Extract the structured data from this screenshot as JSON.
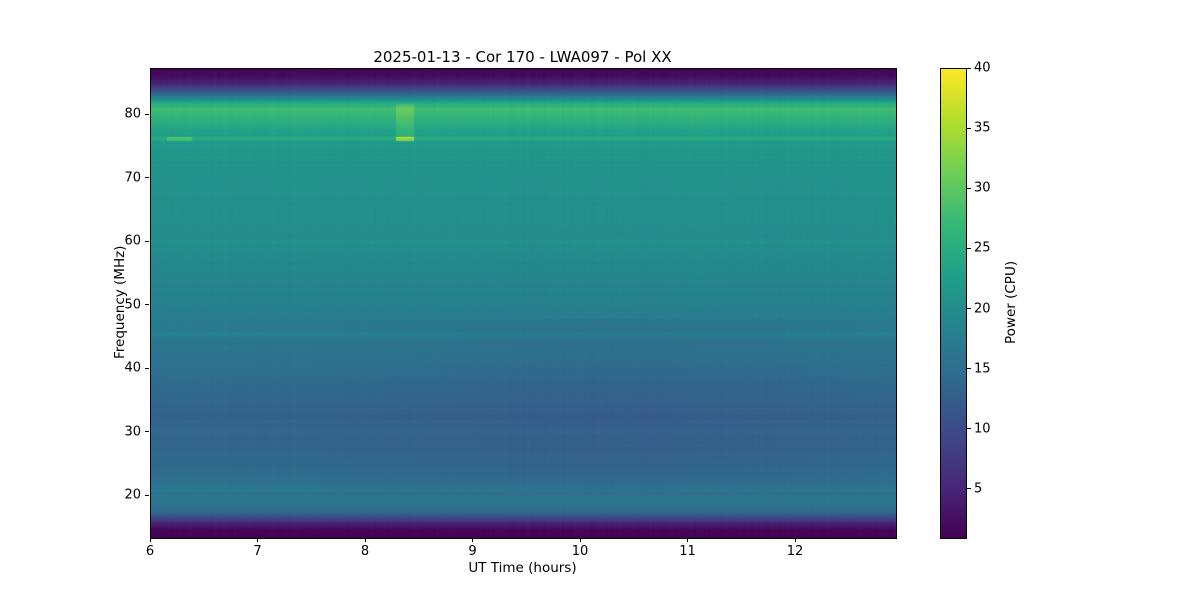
{
  "chart_data": {
    "type": "heatmap",
    "title": "2025-01-13 - Cor 170 - LWA097 - Pol XX",
    "xlabel": "UT Time (hours)",
    "ylabel": "Frequency (MHz)",
    "zlabel": "Power (CPU)",
    "colormap": "viridis",
    "x_range": [
      6.0,
      12.93
    ],
    "y_range": [
      13.4,
      87.3
    ],
    "clim": [
      1,
      40
    ],
    "x_ticks": [
      6,
      7,
      8,
      9,
      10,
      11,
      12
    ],
    "y_ticks": [
      20,
      30,
      40,
      50,
      60,
      70,
      80
    ],
    "colorbar_ticks": [
      5,
      10,
      15,
      20,
      25,
      30,
      35,
      40
    ],
    "spectrum_profile": [
      [
        13.4,
        1.0
      ],
      [
        14.5,
        1.5
      ],
      [
        15.5,
        4.0
      ],
      [
        16.5,
        9.0
      ],
      [
        17.5,
        14.0
      ],
      [
        19.0,
        16.5
      ],
      [
        21.0,
        16.0
      ],
      [
        24.0,
        14.5
      ],
      [
        28.0,
        13.8
      ],
      [
        33.0,
        13.4
      ],
      [
        38.0,
        14.5
      ],
      [
        43.0,
        16.3
      ],
      [
        47.0,
        17.3
      ],
      [
        52.0,
        18.4
      ],
      [
        57.0,
        19.4
      ],
      [
        63.0,
        20.4
      ],
      [
        70.0,
        21.0
      ],
      [
        74.0,
        21.5
      ],
      [
        76.0,
        22.0
      ],
      [
        78.0,
        24.0
      ],
      [
        80.0,
        26.8
      ],
      [
        81.0,
        28.0
      ],
      [
        82.0,
        24.0
      ],
      [
        83.0,
        17.0
      ],
      [
        84.0,
        10.0
      ],
      [
        85.0,
        5.0
      ],
      [
        86.0,
        2.5
      ],
      [
        87.3,
        1.2
      ]
    ],
    "stripe_lines": [
      {
        "freq": 76.3,
        "width": 0.35,
        "boost": 2.5
      },
      {
        "freq": 45.5,
        "width": 0.4,
        "boost": 1.2
      },
      {
        "freq": 60.2,
        "width": 0.4,
        "boost": 0.8
      },
      {
        "freq": 30.1,
        "width": 0.4,
        "boost": 0.7
      },
      {
        "freq": 21.0,
        "width": 0.4,
        "boost": 0.8
      }
    ],
    "transient_features": [
      {
        "t_start": 8.28,
        "t_end": 8.45,
        "f_start": 76.5,
        "f_end": 81.8,
        "boost": 3.0
      },
      {
        "t_start": 8.28,
        "t_end": 8.45,
        "f_start": 76.0,
        "f_end": 76.6,
        "boost": 9.0
      },
      {
        "t_start": 6.15,
        "t_end": 6.38,
        "f_start": 76.0,
        "f_end": 76.6,
        "boost": 4.0
      }
    ],
    "time_dip": {
      "center": 10.3,
      "width": 2.2,
      "depth": 1.0,
      "f_low": 20,
      "f_high": 48
    },
    "noise": {
      "row_amp": 0.35,
      "col_amp": 0.25,
      "seed": 42
    }
  }
}
